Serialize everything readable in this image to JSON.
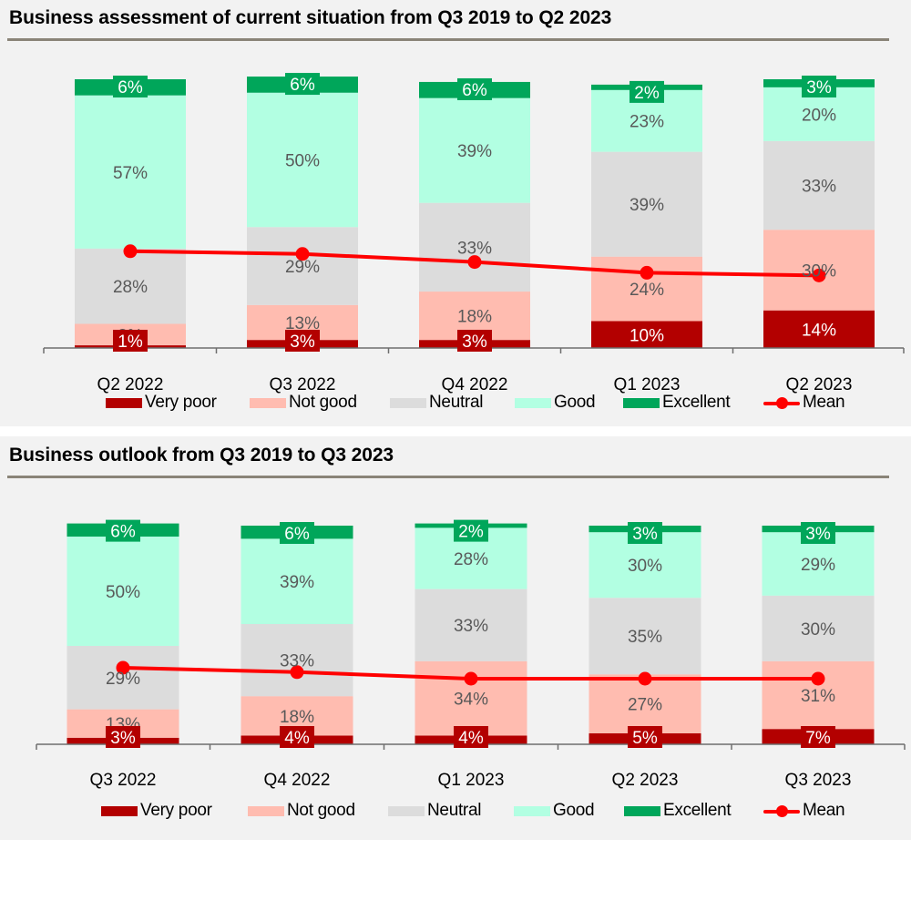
{
  "legend": {
    "very_poor": "Very poor",
    "not_good": "Not good",
    "neutral": "Neutral",
    "good": "Good",
    "excellent": "Excellent",
    "mean": "Mean"
  },
  "colors": {
    "very_poor": "#b30000",
    "not_good": "#ffbcb0",
    "neutral": "#dcdcdc",
    "good": "#b2ffe2",
    "excellent": "#00a65a",
    "mean": "#ff0000",
    "inner_label": "#595959"
  },
  "chart_data": [
    {
      "type": "bar",
      "stacked": true,
      "title": "Business assessment of current situation from Q3 2019 to Q2 2023",
      "xlabel": "",
      "ylabel": "",
      "ylim": [
        0,
        100
      ],
      "grid": false,
      "legend_position": "bottom",
      "categories": [
        "Q2 2022",
        "Q3 2022",
        "Q4 2022",
        "Q1 2023",
        "Q2 2023"
      ],
      "series": [
        {
          "key": "very_poor",
          "name": "Very poor",
          "values": [
            1,
            3,
            3,
            10,
            14
          ]
        },
        {
          "key": "not_good",
          "name": "Not good",
          "values": [
            8,
            13,
            18,
            24,
            30
          ]
        },
        {
          "key": "neutral",
          "name": "Neutral",
          "values": [
            28,
            29,
            33,
            39,
            33
          ]
        },
        {
          "key": "good",
          "name": "Good",
          "values": [
            57,
            50,
            39,
            23,
            20
          ]
        },
        {
          "key": "excellent",
          "name": "Excellent",
          "values": [
            6,
            6,
            6,
            2,
            3
          ]
        }
      ],
      "line_series": {
        "key": "mean",
        "name": "Mean",
        "values_relative_to_bar_scale": [
          36,
          35,
          32,
          28,
          27
        ]
      }
    },
    {
      "type": "bar",
      "stacked": true,
      "title": "Business outlook from Q3 2019 to Q3 2023",
      "xlabel": "",
      "ylabel": "",
      "ylim": [
        0,
        100
      ],
      "grid": false,
      "legend_position": "bottom",
      "categories": [
        "Q3 2022",
        "Q4 2022",
        "Q1 2023",
        "Q2 2023",
        "Q3 2023"
      ],
      "series": [
        {
          "key": "very_poor",
          "name": "Very poor",
          "values": [
            3,
            4,
            4,
            5,
            7
          ]
        },
        {
          "key": "not_good",
          "name": "Not good",
          "values": [
            13,
            18,
            34,
            27,
            31
          ]
        },
        {
          "key": "neutral",
          "name": "Neutral",
          "values": [
            29,
            33,
            33,
            35,
            30
          ]
        },
        {
          "key": "good",
          "name": "Good",
          "values": [
            50,
            39,
            28,
            30,
            29
          ]
        },
        {
          "key": "excellent",
          "name": "Excellent",
          "values": [
            6,
            6,
            2,
            3,
            3
          ]
        }
      ],
      "line_series": {
        "key": "mean",
        "name": "Mean",
        "values_relative_to_bar_scale": [
          35,
          33,
          30,
          30,
          30
        ]
      }
    }
  ]
}
